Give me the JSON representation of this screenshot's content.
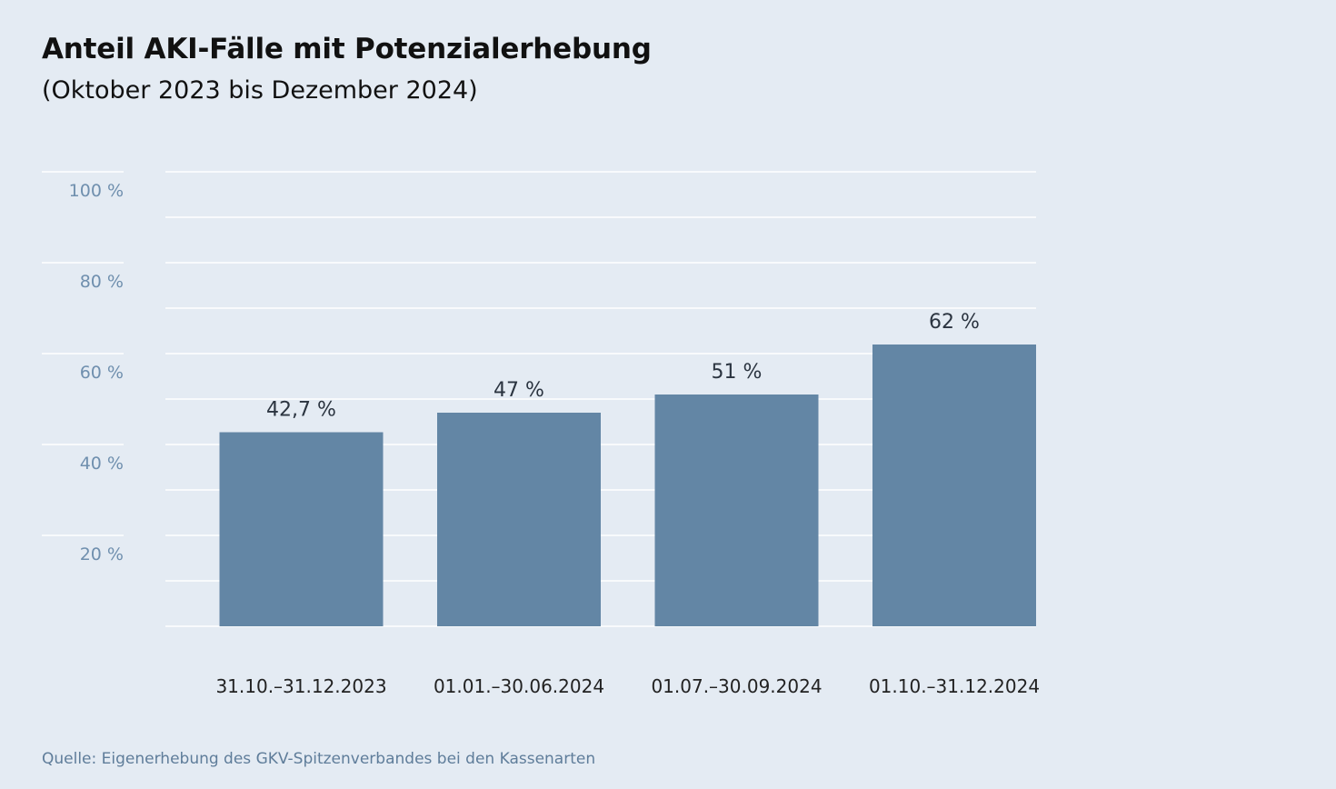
{
  "title": "Anteil AKI-Fälle mit Potenzialerhebung",
  "subtitle": "(Oktober 2023 bis Dezember 2024)",
  "source": "Quelle: Eigenerhebung des GKV-Spitzenverbandes bei den Kassenarten",
  "colors": {
    "background": "#e4ebf3",
    "bar": "#6386a5",
    "gridline": "#ffffff",
    "tick_label": "#6f8fae"
  },
  "chart_data": {
    "type": "bar",
    "title": "Anteil AKI-Fälle mit Potenzialerhebung",
    "subtitle": "(Oktober 2023 bis Dezember 2024)",
    "categories": [
      "31.10.–31.12.2023",
      "01.01.–30.06.2024",
      "01.07.–30.09.2024",
      "01.10.–31.12.2024"
    ],
    "values": [
      42.7,
      47,
      51,
      62
    ],
    "value_labels": [
      "42,7 %",
      "47 %",
      "51 %",
      "62 %"
    ],
    "xlabel": "",
    "ylabel": "",
    "ylim": [
      0,
      100
    ],
    "yticks": [
      20,
      40,
      60,
      80,
      100
    ],
    "ytick_labels": [
      "20 %",
      "40 %",
      "60 %",
      "80 %",
      "100 %"
    ],
    "grid": true,
    "legend": "none"
  }
}
